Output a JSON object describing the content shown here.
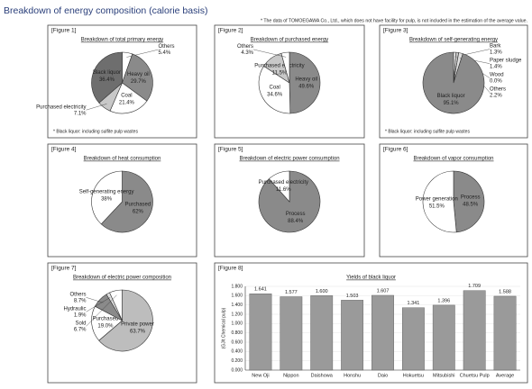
{
  "title": "Breakdown of energy composition (calorie basis)",
  "note": "* The data of TOMOEGAWA Co., Ltd., which does not have facility for pulp, is not included in the estimation of the average value.",
  "chart_data": [
    {
      "type": "pie",
      "title": "[Figure 1]",
      "subtitle": "Breakdown of total primary energy",
      "categories": [
        "Others",
        "Heavy oil",
        "Coal",
        "Purchased electricity",
        "Black liquor"
      ],
      "values": [
        5.4,
        29.7,
        21.4,
        7.1,
        36.4
      ],
      "value_labels": [
        "5.4%",
        "29.7%",
        "21.4%",
        "7.1%",
        "36.4%"
      ],
      "colors": [
        "#ffffff",
        "#8a8a8a",
        "#ffffff",
        "#c8c8c8",
        "#6e6e6e"
      ],
      "footnote": "* Black liquor: including sulfite pulp wastes"
    },
    {
      "type": "pie",
      "title": "[Figure 2]",
      "subtitle": "Breakdown of purchased energy",
      "categories": [
        "Heavy oil",
        "Coal",
        "Purchased electricity",
        "Others"
      ],
      "values": [
        49.6,
        34.6,
        11.5,
        4.3
      ],
      "value_labels": [
        "49.6%",
        "34.6%",
        "11.5%",
        "4.3%"
      ],
      "colors": [
        "#8a8a8a",
        "#ffffff",
        "#c8c8c8",
        "#ffffff"
      ]
    },
    {
      "type": "pie",
      "title": "[Figure 3]",
      "subtitle": "Breakdown of self-generating energy",
      "categories": [
        "Bark",
        "Paper sludge",
        "Wood",
        "Others",
        "Black liquor"
      ],
      "values": [
        1.3,
        1.4,
        0.0,
        2.2,
        95.1
      ],
      "value_labels": [
        "1.3%",
        "1.4%",
        "0.0%",
        "2.2%",
        "95.1%"
      ],
      "colors": [
        "#ffffff",
        "#c8c8c8",
        "#ffffff",
        "#e0e0e0",
        "#8a8a8a"
      ],
      "footnote": "* Black liquor: including sulfite pulp wastes"
    },
    {
      "type": "pie",
      "title": "[Figure 4]",
      "subtitle": "Breakdown of heat consumption",
      "categories": [
        "Purchased",
        "Self-generating energy"
      ],
      "values": [
        62,
        38
      ],
      "value_labels": [
        "62%",
        "38%"
      ],
      "colors": [
        "#8a8a8a",
        "#ffffff"
      ]
    },
    {
      "type": "pie",
      "title": "[Figure 5]",
      "subtitle": "Breakdown of electric power consumption",
      "categories": [
        "Process",
        "Purchased electricity"
      ],
      "values": [
        88.4,
        11.6
      ],
      "value_labels": [
        "88.4%",
        "11.6%"
      ],
      "colors": [
        "#8a8a8a",
        "#ffffff"
      ]
    },
    {
      "type": "pie",
      "title": "[Figure 6]",
      "subtitle": "Breakdown of vapor consumption",
      "categories": [
        "Process",
        "Power generation"
      ],
      "values": [
        48.5,
        51.5
      ],
      "value_labels": [
        "48.5%",
        "51.5%"
      ],
      "colors": [
        "#8a8a8a",
        "#ffffff"
      ]
    },
    {
      "type": "pie",
      "title": "[Figure 7]",
      "subtitle": "Breakdown of electric power composition",
      "categories": [
        "Private power",
        "Purchased",
        "Others",
        "Hydraulic",
        "Sold"
      ],
      "values": [
        63.7,
        19.0,
        8.7,
        1.9,
        6.7
      ],
      "value_labels": [
        "63.7%",
        "19.0%",
        "8.7%",
        "1.9%",
        "6.7%"
      ],
      "colors": [
        "#bdbdbd",
        "#ffffff",
        "#8a8a8a",
        "#e0e0e0",
        "#ffffff"
      ]
    },
    {
      "type": "bar",
      "title": "[Figure 8]",
      "subtitle": "Yields of black liquor",
      "y_label": "(GJ/t Chemical pulp)",
      "categories": [
        "New Oji",
        "Nippon",
        "Daishowa",
        "Honshu",
        "Daio",
        "Hokuetsu",
        "Mitsubishi",
        "Chuetsu Pulp",
        "Average"
      ],
      "values": [
        1.641,
        1.577,
        1.6,
        1.503,
        1.607,
        1.341,
        1.396,
        1.709,
        1.588
      ],
      "value_labels": [
        "1.641",
        "1.577",
        "1.600",
        "1.503",
        "1.607",
        "1.341",
        "1.396",
        "1.709",
        "1.588"
      ],
      "color": "#9a9a9a",
      "ylim": [
        0,
        1.8
      ],
      "yticks": [
        {
          "value": 0,
          "label": "0.000"
        },
        {
          "value": 0.2,
          "label": "0.200"
        },
        {
          "value": 0.4,
          "label": "0.400"
        },
        {
          "value": 0.6,
          "label": "0.600"
        },
        {
          "value": 0.8,
          "label": "0.800"
        },
        {
          "value": 1,
          "label": "1.000"
        },
        {
          "value": 1.2,
          "label": "1.200"
        },
        {
          "value": 1.4,
          "label": "1.400"
        },
        {
          "value": 1.6,
          "label": "1.600"
        },
        {
          "value": 1.8,
          "label": "1.800"
        }
      ]
    }
  ]
}
